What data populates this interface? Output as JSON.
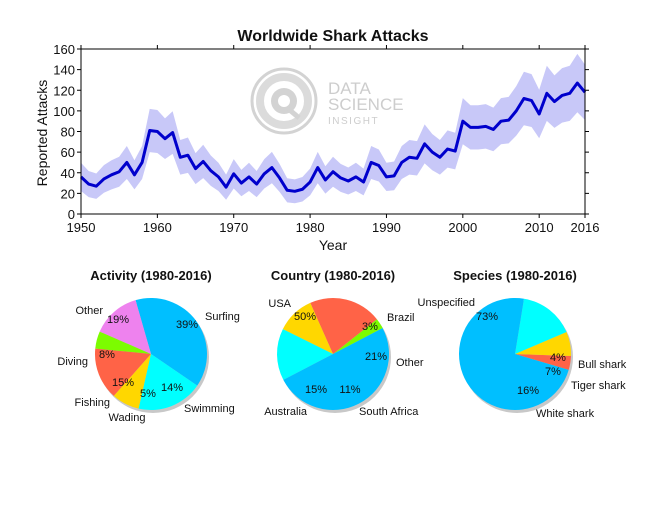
{
  "colors": {
    "line": "#0000cc",
    "band": "#c8c8f8",
    "watermark": "#c8c8c8",
    "pie_shadow": "#9a9a9a"
  },
  "watermark": {
    "icon": "data-science-insight-logo-icon",
    "line1": "DATA",
    "line2": "SCIENCE",
    "line3": "INSIGHT"
  },
  "chart_data": [
    {
      "type": "line",
      "title": "Worldwide Shark Attacks",
      "xlabel": "Year",
      "ylabel": "Reported Attacks",
      "xlim": [
        1950,
        2016
      ],
      "ylim": [
        0,
        160
      ],
      "xticks": [
        1950,
        1960,
        1970,
        1980,
        1990,
        2000,
        2010,
        2016
      ],
      "yticks": [
        0,
        20,
        40,
        60,
        80,
        100,
        120,
        140,
        160
      ],
      "x": [
        1950,
        1951,
        1952,
        1953,
        1954,
        1955,
        1956,
        1957,
        1958,
        1959,
        1960,
        1961,
        1962,
        1963,
        1964,
        1965,
        1966,
        1967,
        1968,
        1969,
        1970,
        1971,
        1972,
        1973,
        1974,
        1975,
        1976,
        1977,
        1978,
        1979,
        1980,
        1981,
        1982,
        1983,
        1984,
        1985,
        1986,
        1987,
        1988,
        1989,
        1990,
        1991,
        1992,
        1993,
        1994,
        1995,
        1996,
        1997,
        1998,
        1999,
        2000,
        2001,
        2002,
        2003,
        2004,
        2005,
        2006,
        2007,
        2008,
        2009,
        2010,
        2011,
        2012,
        2013,
        2014,
        2015,
        2016
      ],
      "series": [
        {
          "values": [
            36,
            29,
            27,
            34,
            38,
            41,
            50,
            38,
            50,
            81,
            80,
            73,
            79,
            55,
            57,
            44,
            51,
            42,
            36,
            26,
            39,
            30,
            36,
            29,
            39,
            45,
            35,
            23,
            22,
            24,
            31,
            45,
            33,
            41,
            35,
            32,
            36,
            31,
            50,
            47,
            36,
            37,
            50,
            55,
            54,
            68,
            60,
            55,
            63,
            61,
            90,
            84,
            84,
            85,
            82,
            90,
            91,
            100,
            112,
            110,
            97,
            117,
            109,
            115,
            117,
            127,
            118
          ]
        }
      ]
    },
    {
      "type": "pie",
      "title": "Activity (1980-2016)",
      "slices": [
        {
          "label": "Surfing",
          "value": 39,
          "pct_label": "39%",
          "color": "#00bfff"
        },
        {
          "label": "Swimming",
          "value": 14,
          "pct_label": "14%",
          "color": "#ee82ee"
        },
        {
          "label": "Wading",
          "value": 5,
          "pct_label": "5%",
          "color": "#7cfc00"
        },
        {
          "label": "Fishing",
          "value": 15,
          "pct_label": "15%",
          "color": "#ff6347"
        },
        {
          "label": "Diving",
          "value": 8,
          "pct_label": "8%",
          "color": "#ffd700"
        },
        {
          "label": "Other",
          "value": 19,
          "pct_label": "19%",
          "color": "#00ffff"
        }
      ]
    },
    {
      "type": "pie",
      "title": "Country (1980-2016)",
      "slices": [
        {
          "label": "Brazil",
          "value": 3,
          "pct_label": "3%",
          "color": "#7cfc00"
        },
        {
          "label": "Other",
          "value": 21,
          "pct_label": "21%",
          "color": "#ff6347"
        },
        {
          "label": "South Africa",
          "value": 11,
          "pct_label": "11%",
          "color": "#ffd700"
        },
        {
          "label": "Australia",
          "value": 15,
          "pct_label": "15%",
          "color": "#00ffff"
        },
        {
          "label": "USA",
          "value": 50,
          "pct_label": "50%",
          "color": "#00bfff"
        }
      ]
    },
    {
      "type": "pie",
      "title": "Species (1980-2016)",
      "slices": [
        {
          "label": "Bull shark",
          "value": 4,
          "pct_label": "4%",
          "color": "#ff6347"
        },
        {
          "label": "Tiger shark",
          "value": 7,
          "pct_label": "7%",
          "color": "#ffd700"
        },
        {
          "label": "White shark",
          "value": 16,
          "pct_label": "16%",
          "color": "#00ffff"
        },
        {
          "label": "Unspecified",
          "value": 73,
          "pct_label": "73%",
          "color": "#00bfff"
        }
      ]
    }
  ]
}
